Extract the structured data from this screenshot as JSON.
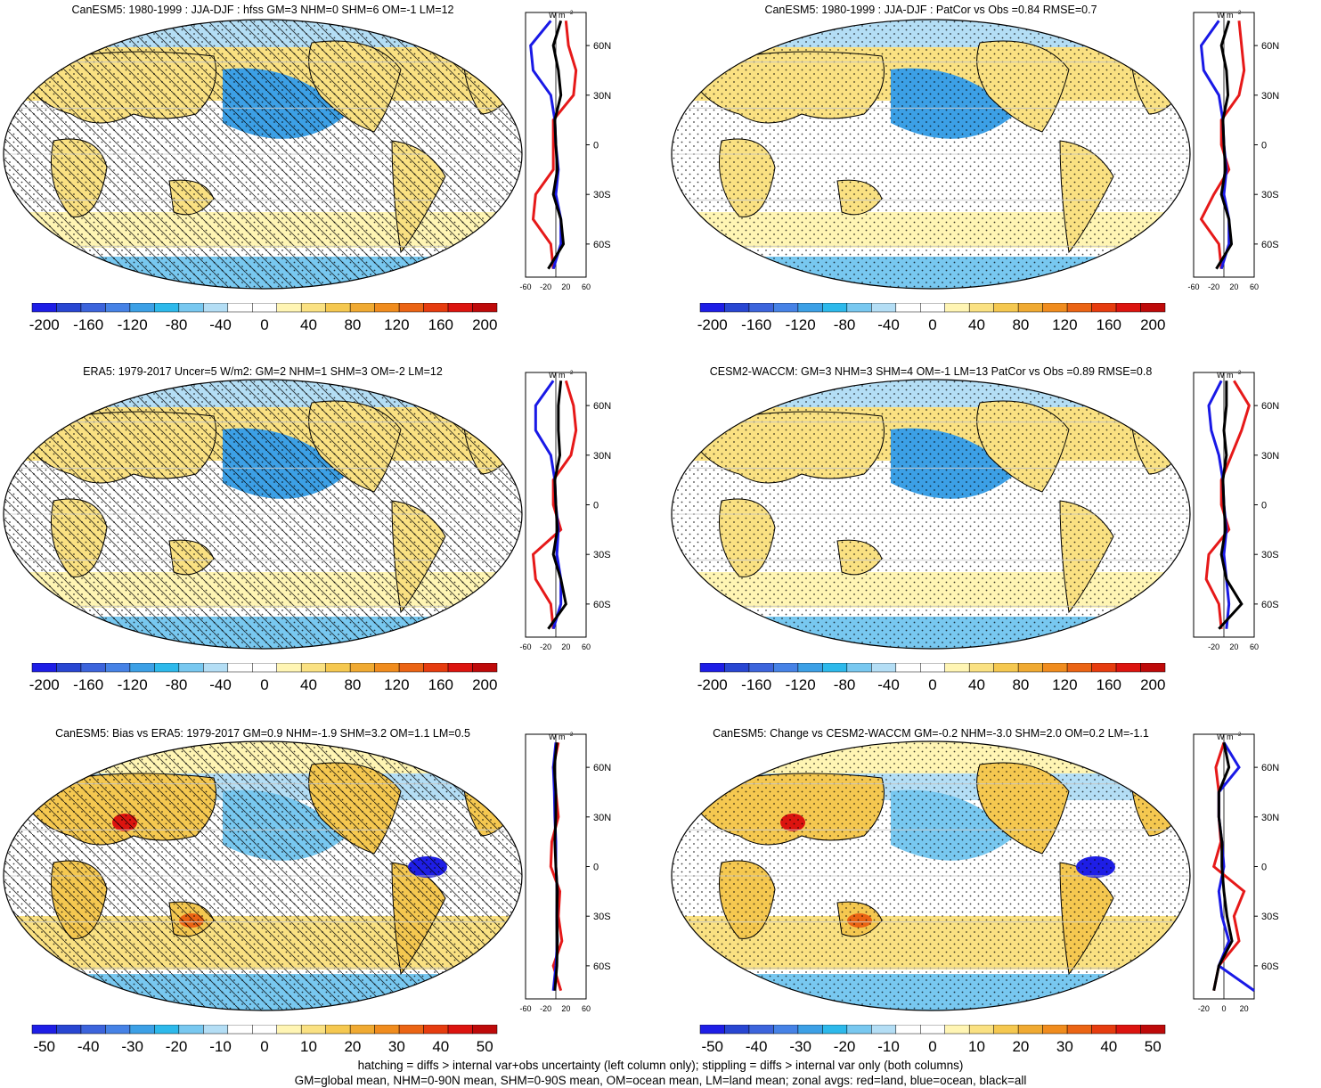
{
  "panels": [
    {
      "title": "CanESM5: 1980-1999 : JJA-DJF : hfss GM=3 NHM=0 SHM=6 OM=-1 LM=12",
      "colorbar": [
        "-200",
        "-160",
        "-120",
        "-80",
        "-40",
        "0",
        "40",
        "80",
        "120",
        "160",
        "200"
      ],
      "zonal_ticks": [
        "-60",
        "-20",
        "20",
        "60"
      ]
    },
    {
      "title": "CanESM5: 1980-1999 : JJA-DJF : PatCor vs Obs =0.84 RMSE=0.7",
      "colorbar": [
        "-200",
        "-160",
        "-120",
        "-80",
        "-40",
        "0",
        "40",
        "80",
        "120",
        "160",
        "200"
      ],
      "zonal_ticks": [
        "-60",
        "-20",
        "20",
        "60"
      ]
    },
    {
      "title": "ERA5: 1979-2017 Uncer=5 W/m2: GM=2 NHM=1 SHM=3 OM=-2 LM=12",
      "colorbar": [
        "-200",
        "-160",
        "-120",
        "-80",
        "-40",
        "0",
        "40",
        "80",
        "120",
        "160",
        "200"
      ],
      "zonal_ticks": [
        "-60",
        "-20",
        "20",
        "60"
      ]
    },
    {
      "title": "CESM2-WACCM: GM=3 NHM=3 SHM=4 OM=-1 LM=13 PatCor vs Obs =0.89 RMSE=0.8",
      "colorbar": [
        "-200",
        "-160",
        "-120",
        "-80",
        "-40",
        "0",
        "40",
        "80",
        "120",
        "160",
        "200"
      ],
      "zonal_ticks": [
        "-20",
        "20",
        "60"
      ]
    },
    {
      "title": "CanESM5: Bias vs ERA5: 1979-2017 GM=0.9 NHM=-1.9 SHM=3.2 OM=1.1 LM=0.5",
      "colorbar": [
        "-50",
        "-40",
        "-30",
        "-20",
        "-10",
        "0",
        "10",
        "20",
        "30",
        "40",
        "50"
      ],
      "zonal_ticks": [
        "-60",
        "-20",
        "20",
        "60"
      ]
    },
    {
      "title": "CanESM5: Change vs CESM2-WACCM GM=-0.2 NHM=-3.0 SHM=2.0 OM=0.2 LM=-1.1",
      "colorbar": [
        "-50",
        "-40",
        "-30",
        "-20",
        "-10",
        "0",
        "10",
        "20",
        "30",
        "40",
        "50"
      ],
      "zonal_ticks": [
        "-20",
        "0",
        "20"
      ]
    }
  ],
  "lat_labels": [
    "60N",
    "30N",
    "0",
    "30S",
    "60S"
  ],
  "zonal_unit": "W m",
  "zonal_unit_sup": "-2",
  "footer": {
    "line1": "hatching = diffs > internal var+obs uncertainty (left column only); stippling = diffs > internal var only (both columns)",
    "line2": "GM=global mean, NHM=0-90N mean, SHM=0-90S mean, OM=ocean mean, LM=land mean; zonal avgs: red=land, blue=ocean, black=all"
  },
  "colors": {
    "scale": [
      "#1e1ee6",
      "#2846d2",
      "#3c64dc",
      "#4682e6",
      "#3ca0e6",
      "#2db9eb",
      "#78c8f0",
      "#b4def5",
      "#ffffff",
      "#ffffff",
      "#fff5b4",
      "#fae182",
      "#f5c850",
      "#f0aa32",
      "#f08c1e",
      "#eb6414",
      "#e63c0f",
      "#dc140f",
      "#be0a0a"
    ],
    "land_line": "#e61919",
    "ocean_line": "#1919e6",
    "all_line": "#000000"
  },
  "chart_data": [
    {
      "type": "heatmap",
      "title": "CanESM5: 1980-1999 : JJA-DJF : hfss GM=3 NHM=0 SHM=6 OM=-1 LM=12",
      "colorbar_range": [
        -200,
        200
      ],
      "zonal_means": {
        "lat": [
          75,
          60,
          45,
          30,
          15,
          0,
          -15,
          -30,
          -45,
          -60,
          -75
        ],
        "land": [
          20,
          25,
          40,
          35,
          -5,
          -5,
          -5,
          -40,
          -45,
          -10,
          -5
        ],
        "ocean": [
          -10,
          -50,
          -45,
          -10,
          -2,
          0,
          5,
          0,
          10,
          10,
          -5
        ],
        "all": [
          10,
          -5,
          5,
          10,
          -2,
          0,
          3,
          -5,
          10,
          15,
          -15
        ]
      }
    },
    {
      "type": "heatmap",
      "title": "CanESM5: 1980-1999 : JJA-DJF : PatCor vs Obs =0.84 RMSE=0.7",
      "colorbar_range": [
        -200,
        200
      ],
      "zonal_means": {
        "lat": [
          75,
          60,
          45,
          30,
          15,
          0,
          -15,
          -30,
          -45,
          -60,
          -75
        ],
        "land": [
          30,
          35,
          40,
          30,
          -5,
          -5,
          10,
          -20,
          -45,
          -10,
          -5
        ],
        "ocean": [
          -10,
          -45,
          -40,
          -10,
          -2,
          0,
          5,
          0,
          10,
          10,
          -5
        ],
        "all": [
          10,
          -5,
          5,
          8,
          -2,
          0,
          3,
          -5,
          10,
          15,
          -15
        ]
      }
    },
    {
      "type": "heatmap",
      "title": "ERA5: 1979-2017 Uncer=5 W/m2: GM=2 NHM=1 SHM=3 OM=-2 LM=12",
      "colorbar_range": [
        -200,
        200
      ],
      "zonal_means": {
        "lat": [
          75,
          60,
          45,
          30,
          15,
          0,
          -15,
          -30,
          -45,
          -60,
          -75
        ],
        "land": [
          20,
          35,
          40,
          30,
          -5,
          -5,
          10,
          -45,
          -40,
          -10,
          -5
        ],
        "ocean": [
          -5,
          -40,
          -40,
          -10,
          -2,
          0,
          5,
          2,
          10,
          10,
          -5
        ],
        "all": [
          10,
          5,
          5,
          8,
          -2,
          0,
          3,
          -5,
          10,
          20,
          -15
        ]
      }
    },
    {
      "type": "heatmap",
      "title": "CESM2-WACCM: GM=3 NHM=3 SHM=4 OM=-1 LM=13 PatCor vs Obs =0.89 RMSE=0.8",
      "colorbar_range": [
        -200,
        200
      ],
      "zonal_means": {
        "lat": [
          75,
          60,
          45,
          30,
          15,
          0,
          -15,
          -30,
          -45,
          -60,
          -75
        ],
        "land": [
          20,
          50,
          35,
          15,
          -5,
          -5,
          10,
          -30,
          -35,
          -10,
          -5
        ],
        "ocean": [
          -5,
          -30,
          -25,
          -10,
          -2,
          0,
          5,
          0,
          5,
          10,
          5
        ],
        "all": [
          5,
          5,
          0,
          5,
          -2,
          0,
          3,
          -5,
          5,
          35,
          -10
        ]
      }
    },
    {
      "type": "heatmap",
      "title": "CanESM5: Bias vs ERA5: 1979-2017 GM=0.9 NHM=-1.9 SHM=3.2 OM=1.1 LM=0.5",
      "colorbar_range": [
        -50,
        50
      ],
      "zonal_means": {
        "lat": [
          75,
          60,
          45,
          30,
          15,
          0,
          -15,
          -30,
          -45,
          -60,
          -75
        ],
        "land": [
          5,
          -5,
          0,
          5,
          -8,
          -10,
          8,
          5,
          12,
          -5,
          10
        ],
        "ocean": [
          0,
          -5,
          -3,
          -2,
          0,
          0,
          3,
          2,
          3,
          0,
          -5
        ],
        "all": [
          2,
          -3,
          0,
          0,
          -2,
          0,
          3,
          2,
          3,
          2,
          -2
        ]
      }
    },
    {
      "type": "heatmap",
      "title": "CanESM5: Change vs CESM2-WACCM GM=-0.2 NHM=-3.0 SHM=2.0 OM=0.2 LM=-1.1",
      "colorbar_range": [
        -50,
        50
      ],
      "zonal_means": {
        "lat": [
          75,
          60,
          45,
          30,
          15,
          0,
          -15,
          -30,
          -45,
          -60,
          -75
        ],
        "land": [
          0,
          -8,
          -5,
          -5,
          -3,
          -10,
          20,
          10,
          15,
          -5,
          -10
        ],
        "ocean": [
          0,
          15,
          -5,
          -5,
          -2,
          0,
          -5,
          -2,
          5,
          -5,
          30
        ],
        "all": [
          0,
          5,
          -5,
          -5,
          -2,
          -2,
          0,
          3,
          8,
          -5,
          -10
        ]
      }
    }
  ]
}
